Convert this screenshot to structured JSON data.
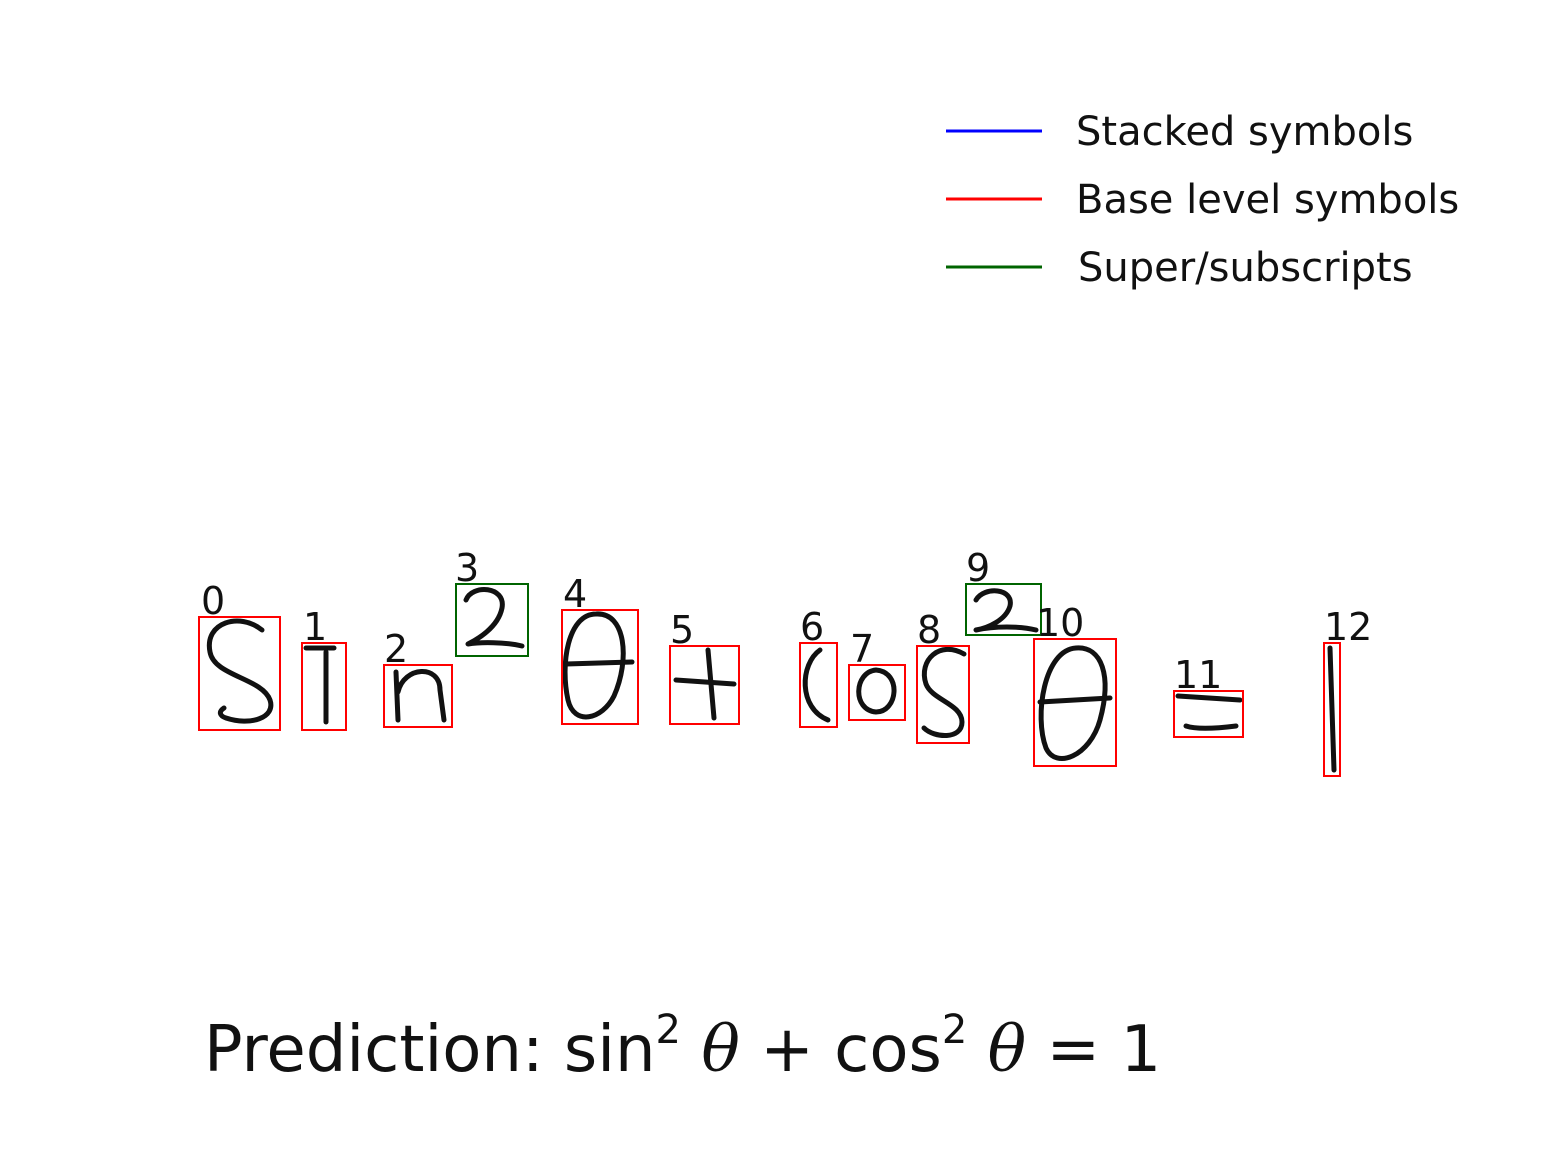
{
  "legend": {
    "items": [
      {
        "label": "Stacked symbols",
        "color": "#0000ff"
      },
      {
        "label": "Base level symbols",
        "color": "#ff0000"
      },
      {
        "label": "Super/subscripts",
        "color": "#006400"
      }
    ]
  },
  "symbols": [
    {
      "index": "0",
      "glyph": "s",
      "level": "base"
    },
    {
      "index": "1",
      "glyph": "i",
      "level": "base"
    },
    {
      "index": "2",
      "glyph": "n",
      "level": "base"
    },
    {
      "index": "3",
      "glyph": "2",
      "level": "super"
    },
    {
      "index": "4",
      "glyph": "theta",
      "level": "base"
    },
    {
      "index": "5",
      "glyph": "+",
      "level": "base"
    },
    {
      "index": "6",
      "glyph": "c",
      "level": "base"
    },
    {
      "index": "7",
      "glyph": "o",
      "level": "base"
    },
    {
      "index": "8",
      "glyph": "s",
      "level": "base"
    },
    {
      "index": "9",
      "glyph": "2",
      "level": "super"
    },
    {
      "index": "10",
      "glyph": "theta",
      "level": "base"
    },
    {
      "index": "11",
      "glyph": "=",
      "level": "base"
    },
    {
      "index": "12",
      "glyph": "1",
      "level": "base"
    }
  ],
  "prediction": {
    "prefix": "Prediction: ",
    "sin": "sin",
    "sup1": "2",
    "theta1": "θ",
    "plus": "+",
    "cos": "cos",
    "sup2": "2",
    "theta2": "θ",
    "equals": "=",
    "one": "1"
  },
  "colors": {
    "base": "#ff0000",
    "super": "#006400",
    "stacked": "#0000ff",
    "ink": "#111111"
  }
}
